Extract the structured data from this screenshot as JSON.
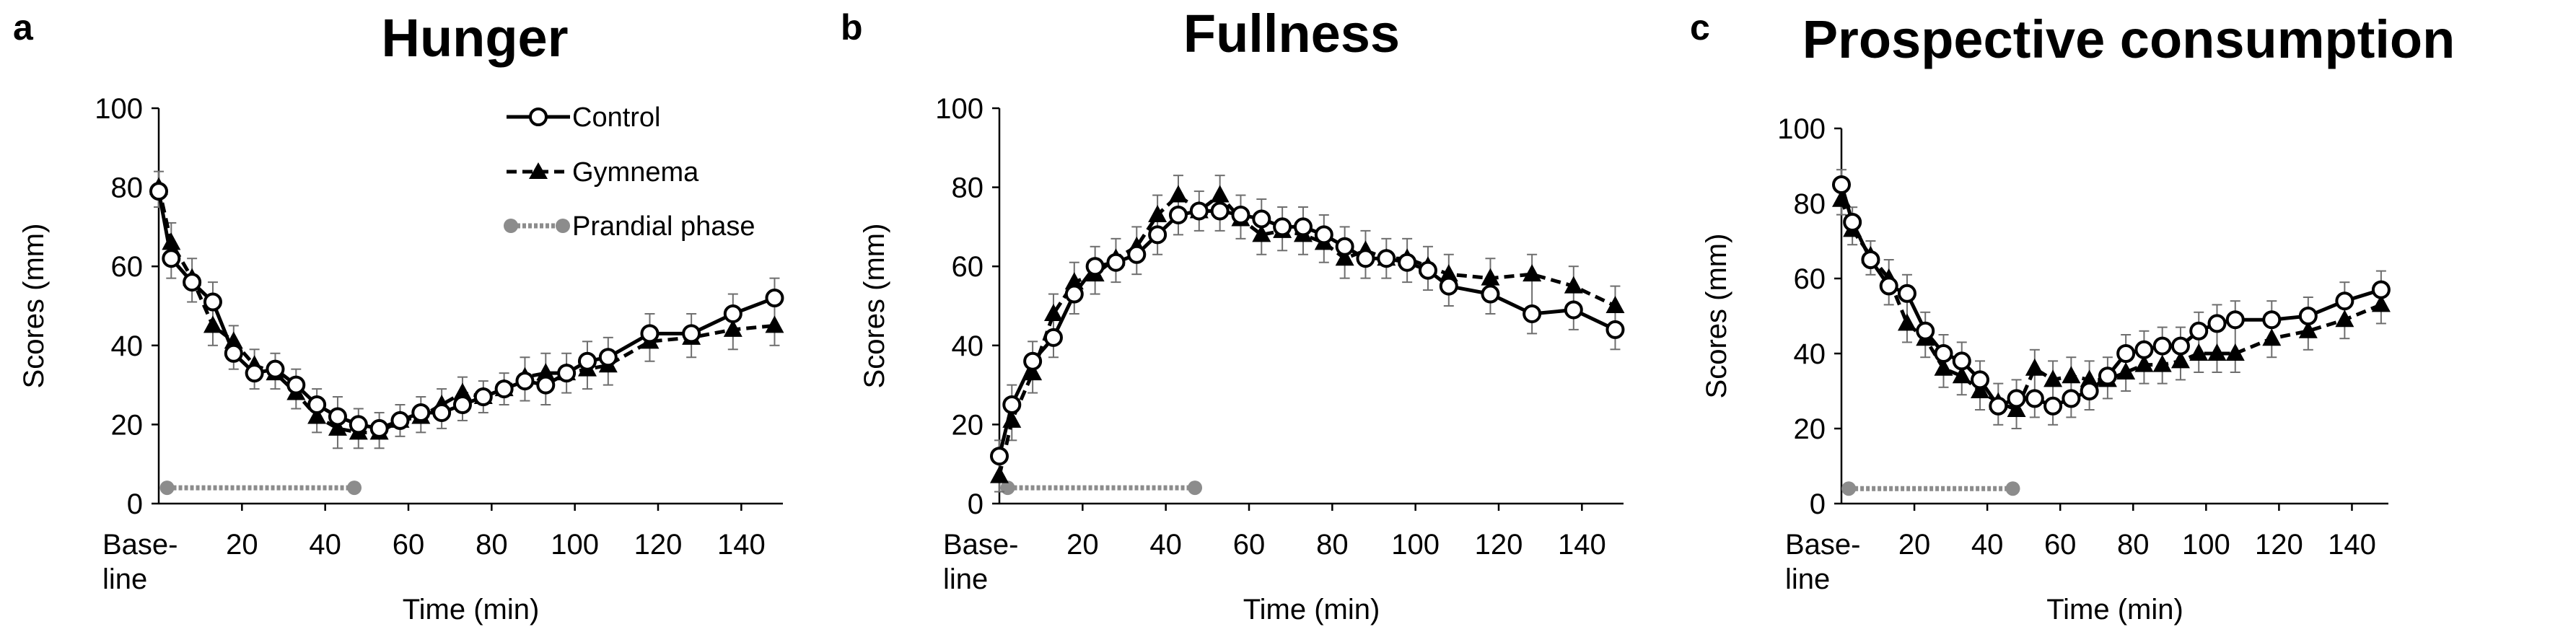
{
  "colors": {
    "control_line": "#000000",
    "gymnema_line": "#000000",
    "prandial": "#8c8c8c",
    "error_bar": "#6e6e6e"
  },
  "legend": {
    "control": "Control",
    "gymnema": "Gymnema",
    "prandial": "Prandial phase"
  },
  "chart_data": [
    {
      "panel": "a",
      "type": "line",
      "title": "Hunger",
      "xlabel": "Time (min)",
      "ylabel": "Scores (mm)",
      "ylim": [
        0,
        100
      ],
      "yticks": [
        0,
        20,
        40,
        60,
        80,
        100
      ],
      "xlim": [
        0,
        150
      ],
      "xticks": [
        20,
        40,
        60,
        80,
        100,
        120,
        140
      ],
      "x_baseline_label": [
        "Base-",
        "line"
      ],
      "legend": [
        "Control",
        "Gymnema",
        "Prandial phase"
      ],
      "prandial_phase": {
        "x": [
          2,
          47
        ],
        "y": 4
      },
      "x": [
        0,
        3,
        8,
        13,
        18,
        23,
        28,
        33,
        38,
        43,
        48,
        53,
        58,
        63,
        68,
        73,
        78,
        83,
        88,
        93,
        98,
        103,
        108,
        118,
        128,
        138,
        148
      ],
      "series": [
        {
          "name": "Control",
          "marker": "open-circle",
          "values": [
            79,
            62,
            56,
            51,
            38,
            33,
            34,
            30,
            25,
            22,
            20,
            19,
            21,
            23,
            23,
            25,
            27,
            29,
            31,
            30,
            33,
            36,
            37,
            43,
            43,
            48,
            52
          ],
          "errors": [
            4,
            5,
            5,
            5,
            4,
            4,
            4,
            4,
            4,
            5,
            4,
            4,
            4,
            4,
            4,
            4,
            4,
            4,
            5,
            5,
            5,
            5,
            5,
            5,
            5,
            5,
            5
          ]
        },
        {
          "name": "Gymnema",
          "marker": "filled-triangle",
          "values": [
            80,
            66,
            57,
            45,
            41,
            35,
            33,
            28,
            22,
            19,
            18,
            18,
            21,
            22,
            25,
            28,
            27,
            29,
            32,
            33,
            33,
            34,
            35,
            41,
            42,
            44,
            45
          ]
        }
      ]
    },
    {
      "panel": "b",
      "type": "line",
      "title": "Fullness",
      "xlabel": "Time (min)",
      "ylabel": "Scores (mm)",
      "ylim": [
        0,
        100
      ],
      "yticks": [
        0,
        20,
        40,
        60,
        80,
        100
      ],
      "xlim": [
        0,
        150
      ],
      "xticks": [
        20,
        40,
        60,
        80,
        100,
        120,
        140
      ],
      "x_baseline_label": [
        "Base-",
        "line"
      ],
      "prandial_phase": {
        "x": [
          2,
          47
        ],
        "y": 4
      },
      "x": [
        0,
        3,
        8,
        13,
        18,
        23,
        28,
        33,
        38,
        43,
        48,
        53,
        58,
        63,
        68,
        73,
        78,
        83,
        88,
        93,
        98,
        103,
        108,
        118,
        128,
        138,
        148
      ],
      "series": [
        {
          "name": "Control",
          "marker": "open-circle",
          "values": [
            12,
            25,
            36,
            42,
            53,
            60,
            61,
            63,
            68,
            73,
            74,
            74,
            73,
            72,
            70,
            70,
            68,
            65,
            62,
            62,
            61,
            59,
            55,
            53,
            48,
            49,
            44
          ],
          "errors": [
            4,
            5,
            5,
            5,
            5,
            5,
            5,
            5,
            5,
            5,
            5,
            5,
            5,
            5,
            5,
            5,
            5,
            5,
            5,
            5,
            5,
            5,
            5,
            5,
            5,
            5,
            5
          ]
        },
        {
          "name": "Gymnema",
          "marker": "filled-triangle",
          "values": [
            7,
            21,
            33,
            48,
            56,
            58,
            62,
            65,
            73,
            78,
            74,
            78,
            72,
            68,
            69,
            68,
            66,
            62,
            64,
            62,
            62,
            60,
            58,
            57,
            58,
            55,
            50
          ]
        }
      ]
    },
    {
      "panel": "c",
      "type": "line",
      "title": "Prospective consumption",
      "xlabel": "Time (min)",
      "ylabel": "Scores (mm)",
      "ylim": [
        0,
        100
      ],
      "yticks": [
        0,
        20,
        40,
        60,
        80,
        100
      ],
      "xlim": [
        0,
        150
      ],
      "xticks": [
        20,
        40,
        60,
        80,
        100,
        120,
        140
      ],
      "x_baseline_label": [
        "Base-",
        "line"
      ],
      "prandial_phase": {
        "x": [
          2,
          47
        ],
        "y": 4
      },
      "x": [
        0,
        3,
        8,
        13,
        18,
        23,
        28,
        33,
        38,
        43,
        48,
        53,
        58,
        63,
        68,
        73,
        78,
        83,
        88,
        93,
        98,
        103,
        108,
        118,
        128,
        138,
        148
      ],
      "series": [
        {
          "name": "Control",
          "marker": "open-circle",
          "values": [
            85,
            75,
            65,
            58,
            56,
            46,
            40,
            38,
            33,
            26,
            28,
            28,
            26,
            28,
            30,
            34,
            40,
            41,
            42,
            42,
            46,
            48,
            49,
            49,
            50,
            54,
            57
          ],
          "errors": [
            4,
            4,
            4,
            5,
            5,
            5,
            5,
            5,
            5,
            5,
            5,
            5,
            5,
            5,
            5,
            5,
            5,
            5,
            5,
            5,
            5,
            5,
            5,
            5,
            5,
            5,
            5
          ]
        },
        {
          "name": "Gymnema",
          "marker": "filled-triangle",
          "values": [
            81,
            73,
            66,
            60,
            48,
            44,
            36,
            34,
            30,
            27,
            25,
            36,
            33,
            34,
            33,
            33,
            35,
            37,
            37,
            38,
            40,
            40,
            40,
            44,
            46,
            49,
            53
          ]
        }
      ]
    }
  ]
}
